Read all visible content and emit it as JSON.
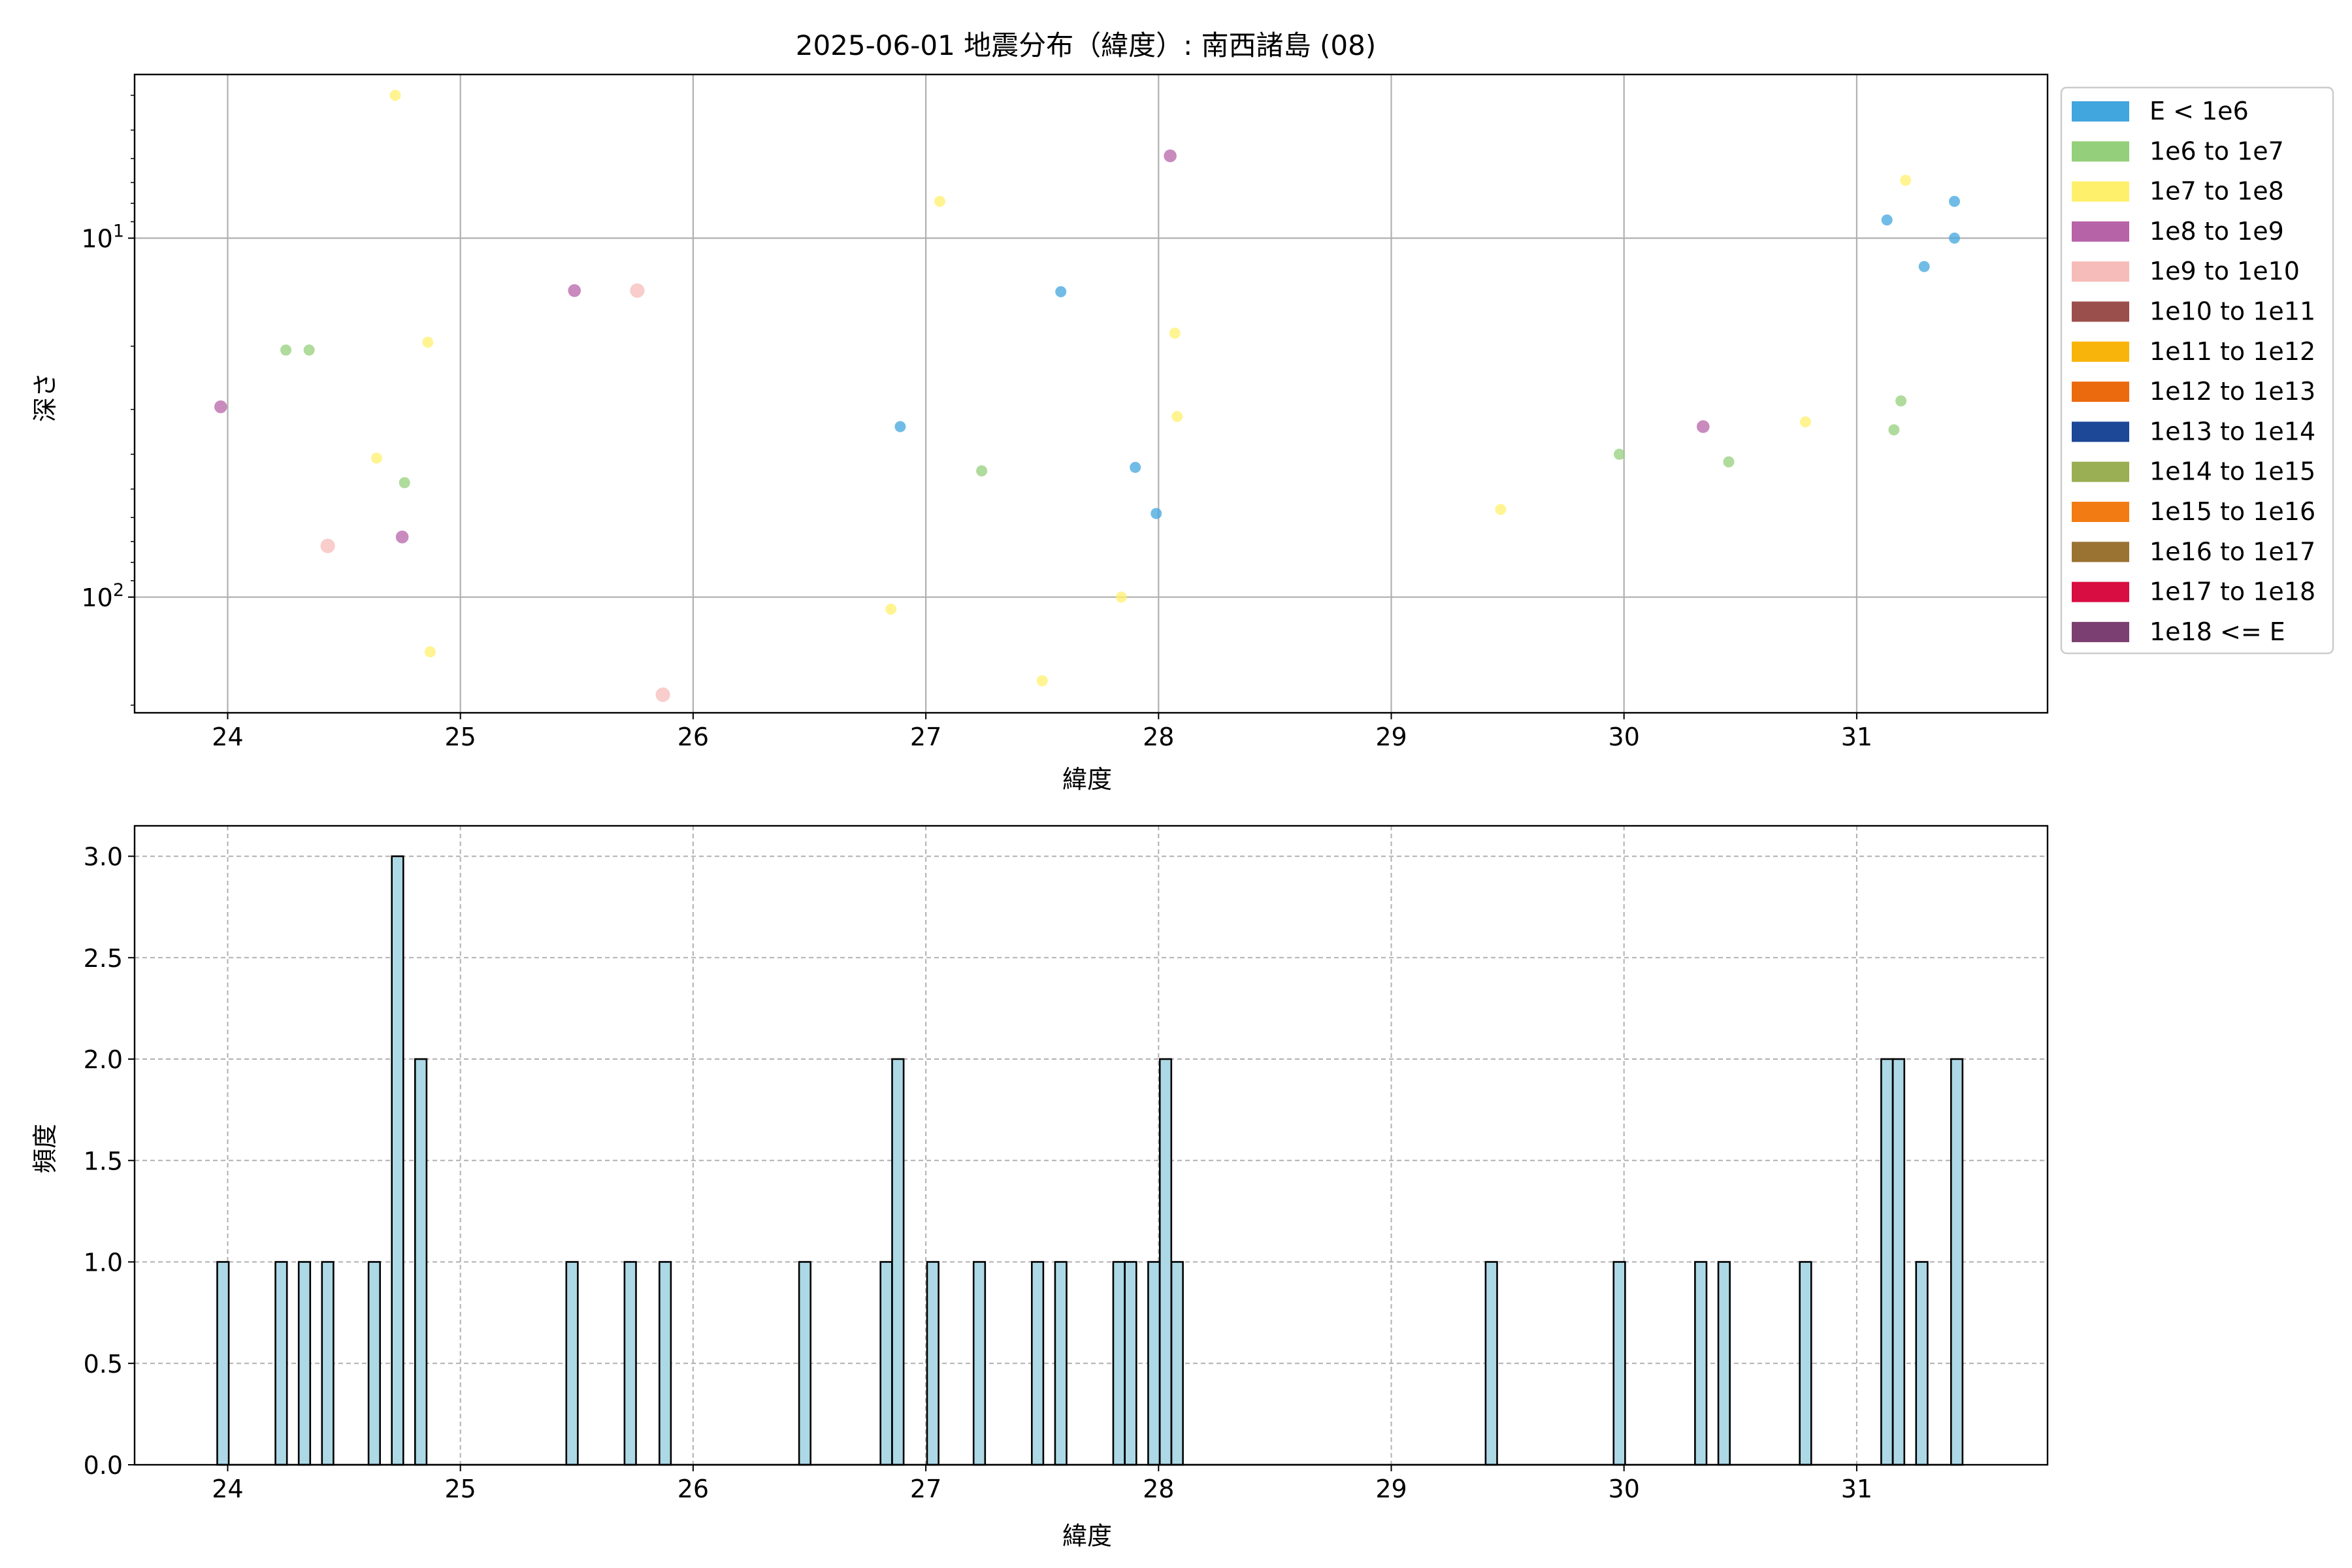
{
  "figure": {
    "title": "2025-06-01 地震分布（緯度）: 南西諸島 (08)"
  },
  "chart_data": [
    {
      "type": "scatter",
      "title": "2025-06-01 地震分布（緯度）: 南西諸島 (08)",
      "xlabel": "緯度",
      "ylabel": "深さ",
      "xlim": [
        23.6,
        31.82
      ],
      "ylim": [
        210,
        3.5
      ],
      "yscale": "log",
      "y_inverted": true,
      "xticks": [
        24,
        25,
        26,
        27,
        28,
        29,
        30,
        31
      ],
      "yticks": [
        {
          "value": 10,
          "base": "10",
          "exp": "1"
        },
        {
          "value": 100,
          "base": "10",
          "exp": "2"
        }
      ],
      "grid": true,
      "legend_position": "outside-right",
      "legend": [
        {
          "label": "E < 1e6",
          "color": "#41a5de"
        },
        {
          "label": "1e6 to 1e7",
          "color": "#94cf7b"
        },
        {
          "label": "1e7 to 1e8",
          "color": "#fff06c"
        },
        {
          "label": "1e8 to 1e9",
          "color": "#b763a8"
        },
        {
          "label": "1e9 to 1e10",
          "color": "#f6bcb9"
        },
        {
          "label": "1e10 to 1e11",
          "color": "#9b4f4c"
        },
        {
          "label": "1e11 to 1e12",
          "color": "#f9b40b"
        },
        {
          "label": "1e12 to 1e13",
          "color": "#ec6a0e"
        },
        {
          "label": "1e13 to 1e14",
          "color": "#1d4797"
        },
        {
          "label": "1e14 to 1e15",
          "color": "#9aaf53"
        },
        {
          "label": "1e15 to 1e16",
          "color": "#f27c13"
        },
        {
          "label": "1e16 to 1e17",
          "color": "#9a7333"
        },
        {
          "label": "1e17 to 1e18",
          "color": "#d80d41"
        },
        {
          "label": "1e18 <= E",
          "color": "#7c3f71"
        }
      ],
      "points": [
        {
          "x": 23.97,
          "y": 29.5,
          "cls": 3,
          "r": 1.15
        },
        {
          "x": 24.25,
          "y": 20.5,
          "cls": 1,
          "r": 1.0
        },
        {
          "x": 24.35,
          "y": 20.5,
          "cls": 1,
          "r": 1.0
        },
        {
          "x": 24.43,
          "y": 72,
          "cls": 4,
          "r": 1.3
        },
        {
          "x": 24.64,
          "y": 41,
          "cls": 2,
          "r": 1.0
        },
        {
          "x": 24.72,
          "y": 4.0,
          "cls": 2,
          "r": 1.0
        },
        {
          "x": 24.75,
          "y": 68,
          "cls": 3,
          "r": 1.15
        },
        {
          "x": 24.76,
          "y": 48,
          "cls": 1,
          "r": 1.0
        },
        {
          "x": 24.86,
          "y": 19.5,
          "cls": 2,
          "r": 1.0
        },
        {
          "x": 24.87,
          "y": 142,
          "cls": 2,
          "r": 1.0
        },
        {
          "x": 25.49,
          "y": 14.0,
          "cls": 3,
          "r": 1.15
        },
        {
          "x": 25.76,
          "y": 14.0,
          "cls": 4,
          "r": 1.3
        },
        {
          "x": 25.87,
          "y": 187,
          "cls": 4,
          "r": 1.3
        },
        {
          "x": 26.85,
          "y": 108,
          "cls": 2,
          "r": 1.0
        },
        {
          "x": 26.89,
          "y": 33.5,
          "cls": 0,
          "r": 1.0
        },
        {
          "x": 27.06,
          "y": 7.9,
          "cls": 2,
          "r": 1.0
        },
        {
          "x": 27.24,
          "y": 44.5,
          "cls": 1,
          "r": 1.0
        },
        {
          "x": 27.5,
          "y": 171,
          "cls": 2,
          "r": 1.0
        },
        {
          "x": 27.58,
          "y": 14.1,
          "cls": 0,
          "r": 1.0
        },
        {
          "x": 27.84,
          "y": 100,
          "cls": 2,
          "r": 1.0
        },
        {
          "x": 27.9,
          "y": 43.5,
          "cls": 0,
          "r": 1.0
        },
        {
          "x": 27.99,
          "y": 58.5,
          "cls": 0,
          "r": 1.0
        },
        {
          "x": 28.05,
          "y": 5.9,
          "cls": 3,
          "r": 1.15
        },
        {
          "x": 28.07,
          "y": 18.4,
          "cls": 2,
          "r": 1.0
        },
        {
          "x": 28.08,
          "y": 31.4,
          "cls": 2,
          "r": 1.0
        },
        {
          "x": 29.47,
          "y": 57,
          "cls": 2,
          "r": 1.0
        },
        {
          "x": 29.98,
          "y": 40,
          "cls": 1,
          "r": 1.0
        },
        {
          "x": 30.34,
          "y": 33.5,
          "cls": 3,
          "r": 1.15
        },
        {
          "x": 30.45,
          "y": 42,
          "cls": 1,
          "r": 1.0
        },
        {
          "x": 30.78,
          "y": 32.5,
          "cls": 2,
          "r": 1.0
        },
        {
          "x": 31.13,
          "y": 8.9,
          "cls": 0,
          "r": 1.0
        },
        {
          "x": 31.16,
          "y": 34.2,
          "cls": 1,
          "r": 1.0
        },
        {
          "x": 31.19,
          "y": 28.4,
          "cls": 1,
          "r": 1.0
        },
        {
          "x": 31.21,
          "y": 6.9,
          "cls": 2,
          "r": 1.0
        },
        {
          "x": 31.29,
          "y": 12.0,
          "cls": 0,
          "r": 1.0
        },
        {
          "x": 31.42,
          "y": 7.9,
          "cls": 0,
          "r": 1.0
        },
        {
          "x": 31.42,
          "y": 10.0,
          "cls": 0,
          "r": 1.0
        }
      ]
    },
    {
      "type": "bar",
      "xlabel": "緯度",
      "ylabel": "頻度",
      "xlim": [
        23.6,
        31.82
      ],
      "ylim": [
        0,
        3.15
      ],
      "xticks": [
        24,
        25,
        26,
        27,
        28,
        29,
        30,
        31
      ],
      "yticks": [
        "0.0",
        "0.5",
        "1.0",
        "1.5",
        "2.0",
        "2.5",
        "3.0"
      ],
      "grid": true,
      "bar_color": "#add8e6",
      "bar_width": 0.0495,
      "bars": [
        {
          "x": 23.98,
          "value": 1
        },
        {
          "x": 24.23,
          "value": 1
        },
        {
          "x": 24.33,
          "value": 1
        },
        {
          "x": 24.43,
          "value": 1
        },
        {
          "x": 24.63,
          "value": 1
        },
        {
          "x": 24.73,
          "value": 3
        },
        {
          "x": 24.83,
          "value": 2
        },
        {
          "x": 25.48,
          "value": 1
        },
        {
          "x": 25.73,
          "value": 1
        },
        {
          "x": 25.88,
          "value": 1
        },
        {
          "x": 26.48,
          "value": 1
        },
        {
          "x": 26.83,
          "value": 1
        },
        {
          "x": 26.88,
          "value": 2
        },
        {
          "x": 27.03,
          "value": 1
        },
        {
          "x": 27.23,
          "value": 1
        },
        {
          "x": 27.48,
          "value": 1
        },
        {
          "x": 27.58,
          "value": 1
        },
        {
          "x": 27.83,
          "value": 1
        },
        {
          "x": 27.88,
          "value": 1
        },
        {
          "x": 27.98,
          "value": 1
        },
        {
          "x": 28.03,
          "value": 2
        },
        {
          "x": 28.08,
          "value": 1
        },
        {
          "x": 29.43,
          "value": 1
        },
        {
          "x": 29.98,
          "value": 1
        },
        {
          "x": 30.33,
          "value": 1
        },
        {
          "x": 30.43,
          "value": 1
        },
        {
          "x": 30.78,
          "value": 1
        },
        {
          "x": 31.13,
          "value": 2
        },
        {
          "x": 31.18,
          "value": 2
        },
        {
          "x": 31.28,
          "value": 1
        },
        {
          "x": 31.43,
          "value": 2
        }
      ]
    }
  ]
}
